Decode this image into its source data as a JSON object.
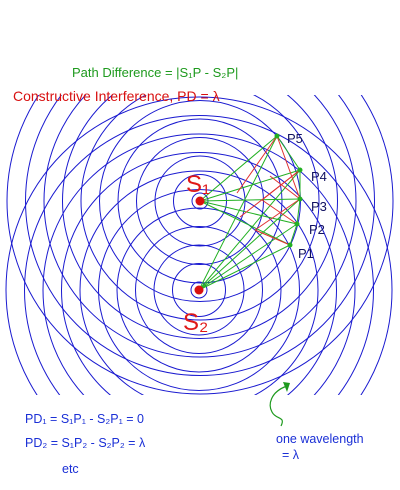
{
  "header": {
    "path_difference": "Path Difference = |S₁P - S₂P|",
    "constructive": "Constructive Interference, PD = λ"
  },
  "sources": [
    {
      "id": "s1",
      "label": "S₁"
    },
    {
      "id": "s2",
      "label": "S₂"
    }
  ],
  "points": [
    {
      "id": "p1",
      "label": "P1"
    },
    {
      "id": "p2",
      "label": "P2"
    },
    {
      "id": "p3",
      "label": "P3"
    },
    {
      "id": "p4",
      "label": "P4"
    },
    {
      "id": "p5",
      "label": "P5"
    }
  ],
  "equations": {
    "pd1": "PD₁ = S₁P₁ - S₂P₁ = 0",
    "pd2": "PD₂ = S₁P₂ - S₂P₂ = λ",
    "etc": "etc"
  },
  "wavelength_note": {
    "line1": "one wavelength",
    "line2": "= λ"
  },
  "colors": {
    "wavefront": "#1a1ad0",
    "source_dot": "#d81010",
    "green_lines": "#22b022",
    "red_lines": "#e03030"
  }
}
